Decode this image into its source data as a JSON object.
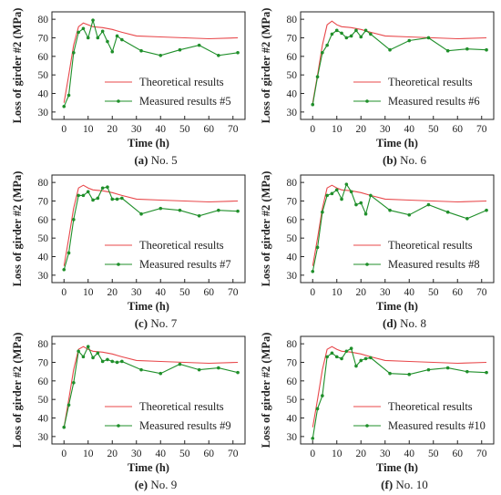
{
  "colors": {
    "theoretical": "#e8474a",
    "measured": "#1f8f2a",
    "axis": "#222222"
  },
  "chart_data": [
    {
      "type": "line",
      "caption_label": "(a)",
      "caption_text": "No. 5",
      "xlabel": "Time (h)",
      "ylabel": "Loss of girder #2 (MPa)",
      "xlim": [
        -5,
        75
      ],
      "ylim": [
        26,
        84
      ],
      "xticks": [
        "0",
        "10",
        "20",
        "30",
        "40",
        "50",
        "60",
        "70"
      ],
      "yticks": [
        "30",
        "40",
        "50",
        "60",
        "70",
        "80"
      ],
      "legend_position": "lower-right",
      "series": [
        {
          "name": "Theoretical results",
          "x": [
            0,
            2,
            4,
            6,
            8,
            10,
            12,
            16,
            20,
            24,
            30,
            40,
            50,
            60,
            72
          ],
          "y": [
            35,
            50,
            66,
            76,
            78,
            77,
            76,
            75.5,
            74.5,
            73,
            71,
            70.5,
            70,
            69.5,
            70
          ]
        },
        {
          "name": "Measured results #5",
          "x": [
            0,
            2,
            4,
            6,
            8,
            10,
            12,
            14,
            16,
            18,
            20,
            22,
            24,
            32,
            40,
            48,
            56,
            64,
            72
          ],
          "y": [
            33,
            39,
            62,
            73,
            75,
            70,
            79.5,
            70,
            73.5,
            68,
            62.5,
            71,
            69,
            63,
            60.5,
            63.5,
            66,
            60.5,
            62
          ]
        }
      ]
    },
    {
      "type": "line",
      "caption_label": "(b)",
      "caption_text": "No. 6",
      "xlabel": "Time (h)",
      "ylabel": "Loss of girder #2 (MPa)",
      "xlim": [
        -5,
        75
      ],
      "ylim": [
        26,
        84
      ],
      "xticks": [
        "0",
        "10",
        "20",
        "30",
        "40",
        "50",
        "60",
        "70"
      ],
      "yticks": [
        "30",
        "40",
        "50",
        "60",
        "70",
        "80"
      ],
      "legend_position": "lower-right",
      "series": [
        {
          "name": "Theoretical results",
          "x": [
            0,
            2,
            4,
            6,
            8,
            10,
            12,
            16,
            20,
            24,
            30,
            40,
            50,
            60,
            72
          ],
          "y": [
            35,
            50,
            66,
            77,
            79,
            77,
            76,
            75.5,
            74.5,
            73,
            71,
            70.5,
            70,
            69.5,
            70
          ]
        },
        {
          "name": "Measured results #6",
          "x": [
            0,
            2,
            4,
            6,
            8,
            10,
            12,
            14,
            16,
            18,
            20,
            22,
            24,
            32,
            40,
            48,
            56,
            64,
            72
          ],
          "y": [
            34,
            49,
            62,
            66,
            72,
            74,
            72.5,
            70,
            71,
            74,
            70.5,
            74,
            72,
            63.5,
            68.5,
            70,
            63,
            64,
            63.5
          ]
        }
      ]
    },
    {
      "type": "line",
      "caption_label": "(c)",
      "caption_text": "No. 7",
      "xlabel": "Time (h)",
      "ylabel": "Loss of girder #2 (MPa)",
      "xlim": [
        -5,
        75
      ],
      "ylim": [
        26,
        84
      ],
      "xticks": [
        "0",
        "10",
        "20",
        "30",
        "40",
        "50",
        "60",
        "70"
      ],
      "yticks": [
        "30",
        "40",
        "50",
        "60",
        "70",
        "80"
      ],
      "legend_position": "lower-right",
      "series": [
        {
          "name": "Theoretical results",
          "x": [
            0,
            2,
            4,
            6,
            8,
            10,
            12,
            16,
            20,
            24,
            30,
            40,
            50,
            60,
            72
          ],
          "y": [
            35,
            50,
            66,
            77,
            78.5,
            77,
            76,
            75.5,
            74.5,
            73,
            71,
            70.5,
            70,
            69.5,
            70
          ]
        },
        {
          "name": "Measured results #7",
          "x": [
            0,
            2,
            4,
            6,
            8,
            10,
            12,
            14,
            16,
            18,
            20,
            22,
            24,
            32,
            40,
            48,
            56,
            64,
            72
          ],
          "y": [
            33,
            42,
            60,
            73,
            73,
            75,
            70.5,
            71.5,
            77,
            77.5,
            71,
            71,
            71.5,
            63,
            66,
            65,
            62,
            65,
            64.5
          ]
        }
      ]
    },
    {
      "type": "line",
      "caption_label": "(d)",
      "caption_text": "No. 8",
      "xlabel": "Time (h)",
      "ylabel": "Loss of girder #2 (MPa)",
      "xlim": [
        -5,
        75
      ],
      "ylim": [
        26,
        84
      ],
      "xticks": [
        "0",
        "10",
        "20",
        "30",
        "40",
        "50",
        "60",
        "70"
      ],
      "yticks": [
        "30",
        "40",
        "50",
        "60",
        "70",
        "80"
      ],
      "legend_position": "lower-right",
      "series": [
        {
          "name": "Theoretical results",
          "x": [
            0,
            2,
            4,
            6,
            8,
            10,
            12,
            16,
            20,
            24,
            30,
            40,
            50,
            60,
            72
          ],
          "y": [
            35,
            50,
            66,
            77,
            78.5,
            77,
            76,
            75.5,
            74.5,
            73,
            71,
            70.5,
            70,
            69.5,
            70
          ]
        },
        {
          "name": "Measured results #8",
          "x": [
            0,
            2,
            4,
            6,
            8,
            10,
            12,
            14,
            16,
            18,
            20,
            22,
            24,
            32,
            40,
            48,
            56,
            64,
            72
          ],
          "y": [
            32,
            45,
            64,
            73,
            74,
            76,
            71,
            79,
            75,
            68,
            69,
            63,
            73,
            65,
            62.5,
            68,
            64,
            60.5,
            65
          ]
        }
      ]
    },
    {
      "type": "line",
      "caption_label": "(e)",
      "caption_text": "No. 9",
      "xlabel": "Time (h)",
      "ylabel": "Loss of girder #2 (MPa)",
      "xlim": [
        -5,
        75
      ],
      "ylim": [
        26,
        84
      ],
      "xticks": [
        "0",
        "10",
        "20",
        "30",
        "40",
        "50",
        "60",
        "70"
      ],
      "yticks": [
        "30",
        "40",
        "50",
        "60",
        "70",
        "80"
      ],
      "legend_position": "lower-right",
      "series": [
        {
          "name": "Theoretical results",
          "x": [
            0,
            2,
            4,
            6,
            8,
            10,
            12,
            16,
            20,
            24,
            30,
            40,
            50,
            60,
            72
          ],
          "y": [
            35,
            50,
            66,
            77,
            78.5,
            77,
            76,
            75.5,
            74.5,
            73,
            71,
            70.5,
            70,
            69.5,
            70
          ]
        },
        {
          "name": "Measured results #9",
          "x": [
            0,
            2,
            4,
            6,
            8,
            10,
            12,
            14,
            16,
            18,
            20,
            22,
            24,
            32,
            40,
            48,
            56,
            64,
            72
          ],
          "y": [
            35,
            47,
            59,
            76,
            73,
            78.5,
            72.5,
            75,
            70.5,
            71.5,
            70.5,
            70,
            70.5,
            66,
            64,
            69,
            66,
            67,
            64.5
          ]
        }
      ]
    },
    {
      "type": "line",
      "caption_label": "(f)",
      "caption_text": "No. 10",
      "xlabel": "Time (h)",
      "ylabel": "Loss of girder #2 (MPa)",
      "xlim": [
        -5,
        75
      ],
      "ylim": [
        26,
        84
      ],
      "xticks": [
        "0",
        "10",
        "20",
        "30",
        "40",
        "50",
        "60",
        "70"
      ],
      "yticks": [
        "30",
        "40",
        "50",
        "60",
        "70",
        "80"
      ],
      "legend_position": "lower-right",
      "series": [
        {
          "name": "Theoretical results",
          "x": [
            0,
            2,
            4,
            6,
            8,
            10,
            12,
            16,
            20,
            24,
            30,
            40,
            50,
            60,
            72
          ],
          "y": [
            35,
            50,
            66,
            77,
            78.5,
            77,
            76,
            75.5,
            74.5,
            73,
            71,
            70.5,
            70,
            69.5,
            70
          ]
        },
        {
          "name": "Measured results #10",
          "x": [
            0,
            2,
            4,
            6,
            8,
            10,
            12,
            14,
            16,
            18,
            20,
            22,
            24,
            32,
            40,
            48,
            56,
            64,
            72
          ],
          "y": [
            29,
            45,
            52,
            73,
            75,
            73,
            72,
            76,
            77.5,
            68,
            71,
            72,
            72.5,
            64,
            63.5,
            66,
            67,
            65,
            64.5
          ]
        }
      ]
    }
  ]
}
